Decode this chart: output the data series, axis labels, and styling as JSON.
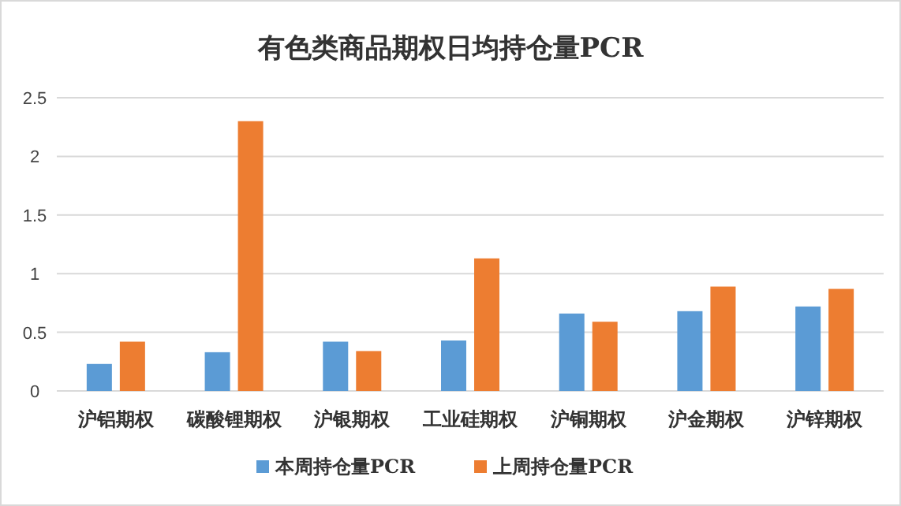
{
  "chart_data": {
    "type": "bar",
    "title": "有色类商品期权日均持仓量PCR",
    "categories": [
      "沪铝期权",
      "碳酸锂期权",
      "沪银期权",
      "工业硅期权",
      "沪铜期权",
      "沪金期权",
      "沪锌期权"
    ],
    "series": [
      {
        "name": "本周持仓量PCR",
        "color": "#5b9bd5",
        "values": [
          0.23,
          0.33,
          0.42,
          0.43,
          0.66,
          0.68,
          0.72
        ]
      },
      {
        "name": "上周持仓量PCR",
        "color": "#ed7d31",
        "values": [
          0.42,
          2.3,
          0.34,
          1.13,
          0.59,
          0.89,
          0.87
        ]
      }
    ],
    "ylim": [
      0,
      2.5
    ],
    "yticks": [
      0,
      0.5,
      1,
      1.5,
      2,
      2.5
    ],
    "grid": "y",
    "legend": "bottom"
  }
}
